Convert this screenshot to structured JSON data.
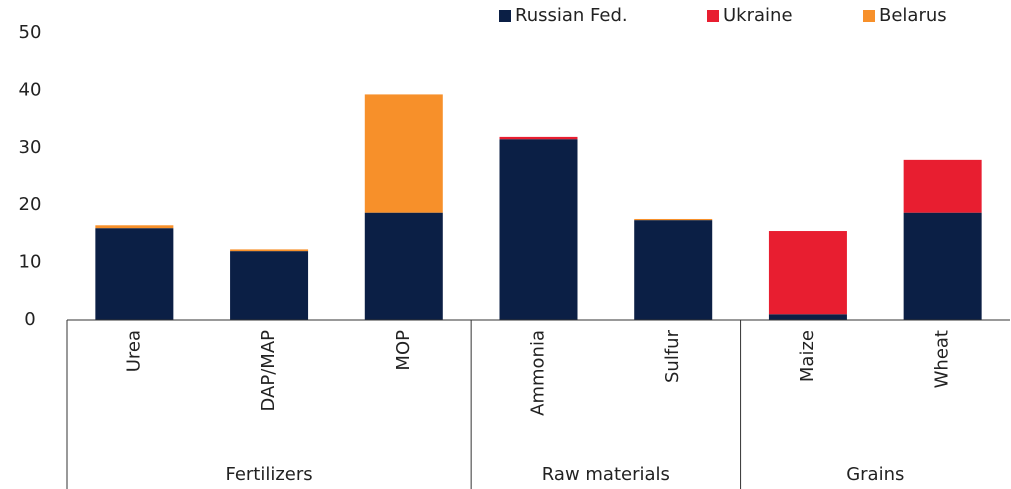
{
  "chart_data": {
    "type": "stacked_bar",
    "category_groups": [
      {
        "name": "Fertilizers",
        "categories": [
          "Urea",
          "DAP/MAP",
          "MOP"
        ]
      },
      {
        "name": "Raw materials",
        "categories": [
          "Ammonia",
          "Sulfur"
        ]
      },
      {
        "name": "Grains",
        "categories": [
          "Maize",
          "Wheat"
        ]
      }
    ],
    "series": [
      {
        "name": "Russian Fed.",
        "color": "#0b1f45",
        "values": [
          16,
          12,
          18.7,
          31.5,
          17.4,
          1,
          18.7
        ]
      },
      {
        "name": "Ukraine",
        "color": "#e81e30",
        "values": [
          0,
          0,
          0,
          0.4,
          0,
          14.5,
          9.2
        ]
      },
      {
        "name": "Belarus",
        "color": "#f7902a",
        "values": [
          0.5,
          0.3,
          20.6,
          0,
          0.2,
          0,
          0
        ]
      }
    ],
    "ylim": [
      0,
      50
    ],
    "yticks": [
      0,
      10,
      20,
      30,
      40,
      50
    ],
    "legend": "top-right"
  }
}
